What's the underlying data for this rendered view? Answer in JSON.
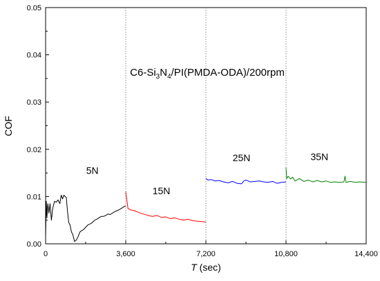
{
  "chart_data": {
    "type": "line",
    "title": "",
    "xlabel_italic": "T",
    "xlabel_rest": " (sec)",
    "ylabel": "COF",
    "xlim": [
      0,
      14400
    ],
    "ylim": [
      0,
      0.05
    ],
    "x_ticks": [
      0,
      3600,
      7200,
      10800,
      14400
    ],
    "x_tick_labels": [
      "0",
      "3,600",
      "7,200",
      "10,800",
      "14,400"
    ],
    "y_ticks": [
      0,
      0.01,
      0.02,
      0.03,
      0.04,
      0.05
    ],
    "y_tick_labels": [
      "0.00",
      "0.01",
      "0.02",
      "0.03",
      "0.04",
      "0.05"
    ],
    "boundaries": [
      3600,
      7200,
      10800
    ],
    "grid": false,
    "annotation": {
      "prefix": "C6-Si",
      "sub1": "3",
      "mid": "N",
      "sub2": "4",
      "suffix": "/PI(PMDA-ODA)/200rpm",
      "x": 7100,
      "y": 0.0375
    },
    "series": [
      {
        "label": "5N",
        "color": "#000000",
        "label_pos": [
          2100,
          0.0148
        ],
        "x": [
          0,
          30,
          60,
          100,
          150,
          200,
          260,
          320,
          400,
          480,
          560,
          640,
          700,
          760,
          820,
          880,
          930,
          980,
          1040,
          1100,
          1160,
          1220,
          1300,
          1380,
          1460,
          1540,
          1620,
          1700,
          1800,
          1900,
          2000,
          2100,
          2200,
          2300,
          2400,
          2500,
          2600,
          2700,
          2800,
          2900,
          3000,
          3100,
          3200,
          3300,
          3400,
          3500,
          3600
        ],
        "y": [
          0.0015,
          0.009,
          0.0055,
          0.0085,
          0.0065,
          0.0085,
          0.005,
          0.0075,
          0.009,
          0.0088,
          0.0093,
          0.0085,
          0.0103,
          0.0095,
          0.0103,
          0.01,
          0.0098,
          0.007,
          0.0045,
          0.004,
          0.0025,
          0.002,
          0.0005,
          0.0008,
          0.0015,
          0.0025,
          0.0028,
          0.003,
          0.0035,
          0.004,
          0.0042,
          0.0045,
          0.005,
          0.0052,
          0.0055,
          0.0058,
          0.0058,
          0.006,
          0.0063,
          0.0062,
          0.0065,
          0.0068,
          0.007,
          0.0072,
          0.0075,
          0.0078,
          0.008
        ]
      },
      {
        "label": "15N",
        "color": "#ff0000",
        "label_pos": [
          5200,
          0.0105
        ],
        "x": [
          3600,
          3700,
          3800,
          4000,
          4200,
          4400,
          4600,
          4800,
          5000,
          5200,
          5400,
          5600,
          5800,
          6000,
          6200,
          6400,
          6600,
          6800,
          7000,
          7200
        ],
        "y": [
          0.011,
          0.0075,
          0.0072,
          0.007,
          0.0066,
          0.0063,
          0.006,
          0.0058,
          0.006,
          0.0056,
          0.0057,
          0.0053,
          0.0055,
          0.0052,
          0.005,
          0.0052,
          0.0049,
          0.0048,
          0.0047,
          0.0046
        ]
      },
      {
        "label": "25N",
        "color": "#0000ff",
        "label_pos": [
          8800,
          0.0175
        ],
        "x": [
          7200,
          7300,
          7450,
          7600,
          7800,
          8000,
          8200,
          8400,
          8600,
          8800,
          8900,
          9000,
          9200,
          9400,
          9600,
          9800,
          10000,
          10200,
          10400,
          10600,
          10800
        ],
        "y": [
          0.0138,
          0.0135,
          0.0136,
          0.0133,
          0.0134,
          0.0131,
          0.0129,
          0.0132,
          0.0128,
          0.0127,
          0.0133,
          0.0135,
          0.0131,
          0.0132,
          0.0133,
          0.0131,
          0.013,
          0.0132,
          0.0128,
          0.013,
          0.0131
        ]
      },
      {
        "label": "35N",
        "color": "#008000",
        "label_pos": [
          12300,
          0.0177
        ],
        "x": [
          10800,
          10830,
          10900,
          11000,
          11100,
          11200,
          11400,
          11600,
          11800,
          12000,
          12200,
          12400,
          12600,
          12800,
          13000,
          13200,
          13400,
          13450,
          13500,
          13700,
          13900,
          14100,
          14400
        ],
        "y": [
          0.0161,
          0.0138,
          0.0143,
          0.0137,
          0.0141,
          0.0133,
          0.0138,
          0.0132,
          0.0135,
          0.0131,
          0.0134,
          0.0131,
          0.0133,
          0.013,
          0.0131,
          0.013,
          0.0131,
          0.0143,
          0.013,
          0.0132,
          0.013,
          0.0131,
          0.013
        ]
      }
    ]
  }
}
